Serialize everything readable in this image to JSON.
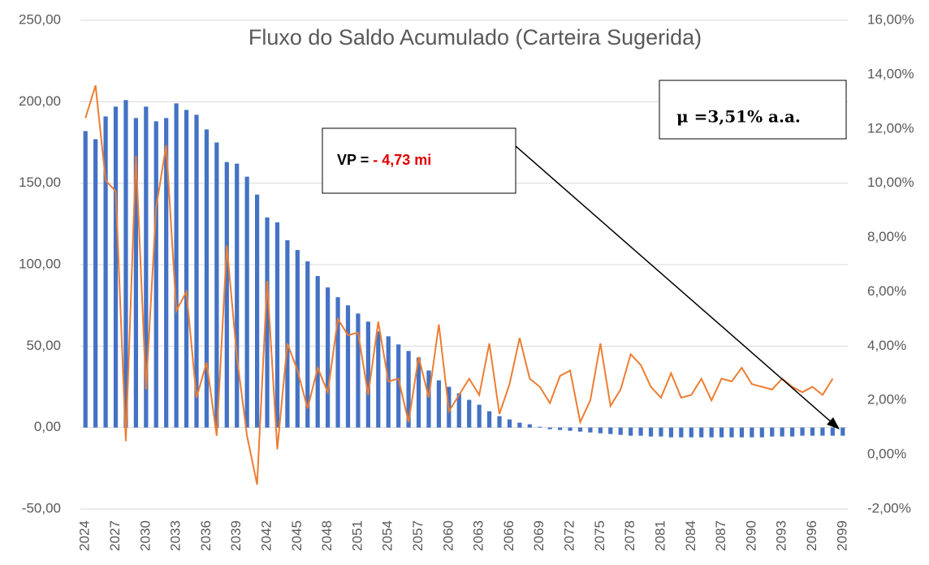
{
  "chart_data": {
    "type": "bar_line",
    "title": "Fluxo do Saldo Acumulado (Carteira Sugerida)",
    "categories": [
      "2024",
      null,
      null,
      "2027",
      null,
      null,
      "2030",
      null,
      null,
      "2033",
      null,
      null,
      "2036",
      null,
      null,
      "2039",
      null,
      null,
      "2042",
      null,
      null,
      "2045",
      null,
      null,
      "2048",
      null,
      null,
      "2051",
      null,
      null,
      "2054",
      null,
      null,
      "2057",
      null,
      null,
      "2060",
      null,
      null,
      "2063",
      null,
      null,
      "2066",
      null,
      null,
      "2069",
      null,
      null,
      "2072",
      null,
      null,
      "2075",
      null,
      null,
      "2078",
      null,
      null,
      "2081",
      null,
      null,
      "2084",
      null,
      null,
      "2087",
      null,
      null,
      "2090",
      null,
      null,
      "2093",
      null,
      null,
      "2096",
      null,
      null,
      "2099"
    ],
    "series": [
      {
        "type": "bar",
        "color": "#4472c4",
        "values": [
          182,
          177,
          191,
          197,
          201,
          190,
          197,
          188,
          190,
          199,
          195,
          192,
          183,
          175,
          163,
          162,
          154,
          143,
          129,
          126,
          115,
          109,
          102,
          93,
          86,
          80,
          75,
          70,
          65,
          59,
          56,
          51,
          47,
          43,
          35,
          29,
          25,
          21,
          17,
          14,
          10,
          7,
          5,
          3,
          2,
          0.5,
          -1,
          -1.5,
          -2,
          -2.5,
          -3,
          -3.5,
          -4,
          -4.5,
          -5,
          -5,
          -5.5,
          -5.5,
          -6,
          -6,
          -6,
          -6,
          -6,
          -6,
          -6,
          -6,
          -6,
          -6,
          -5.5,
          -5.5,
          -5.5,
          -5,
          -5,
          -5,
          -5,
          -5
        ]
      },
      {
        "type": "line",
        "axis": "y2",
        "color": "#ed7d31",
        "values": [
          12.4,
          13.6,
          10.1,
          9.7,
          0.5,
          11.0,
          2.4,
          9.1,
          11.4,
          5.3,
          6.0,
          2.1,
          3.4,
          0.7,
          7.7,
          3.6,
          0.7,
          -1.1,
          6.4,
          0.2,
          4.1,
          3.1,
          1.7,
          3.2,
          2.3,
          5.0,
          4.4,
          4.5,
          2.2,
          4.9,
          2.7,
          2.8,
          1.2,
          3.6,
          2.1,
          4.8,
          1.6,
          2.2,
          2.8,
          2.2,
          4.1,
          1.5,
          2.6,
          4.3,
          2.8,
          2.5,
          1.9,
          2.9,
          3.1,
          1.2,
          2.0,
          4.1,
          1.8,
          2.4,
          3.7,
          3.3,
          2.5,
          2.1,
          3.0,
          2.1,
          2.2,
          2.8,
          2.0,
          2.8,
          2.7,
          3.2,
          2.6,
          2.5,
          2.4,
          2.8,
          2.5,
          2.3,
          2.5,
          2.2,
          2.8,
          null
        ]
      }
    ],
    "ylim": [
      -50,
      250
    ],
    "yticks": [
      {
        "value": -50,
        "label": "-50,00"
      },
      {
        "value": 0,
        "label": "0,00"
      },
      {
        "value": 50,
        "label": "50,00"
      },
      {
        "value": 100,
        "label": "100,00"
      },
      {
        "value": 150,
        "label": "150,00"
      },
      {
        "value": 200,
        "label": "200,00"
      },
      {
        "value": 250,
        "label": "250,00"
      }
    ],
    "y2lim": [
      -2,
      16
    ],
    "y2ticks": [
      {
        "value": -2,
        "label": "-2,00%"
      },
      {
        "value": 0,
        "label": "0,00%"
      },
      {
        "value": 2,
        "label": "2,00%"
      },
      {
        "value": 4,
        "label": "4,00%"
      },
      {
        "value": 6,
        "label": "6,00%"
      },
      {
        "value": 8,
        "label": "8,00%"
      },
      {
        "value": 10,
        "label": "10,00%"
      },
      {
        "value": 12,
        "label": "12,00%"
      },
      {
        "value": 14,
        "label": "14,00%"
      },
      {
        "value": 16,
        "label": "16,00%"
      }
    ],
    "grid": true,
    "annotations": [
      {
        "label": "VP = ",
        "highlight": "- 4,73 mi"
      },
      {
        "label": "μ =3,51% a.a."
      }
    ]
  }
}
